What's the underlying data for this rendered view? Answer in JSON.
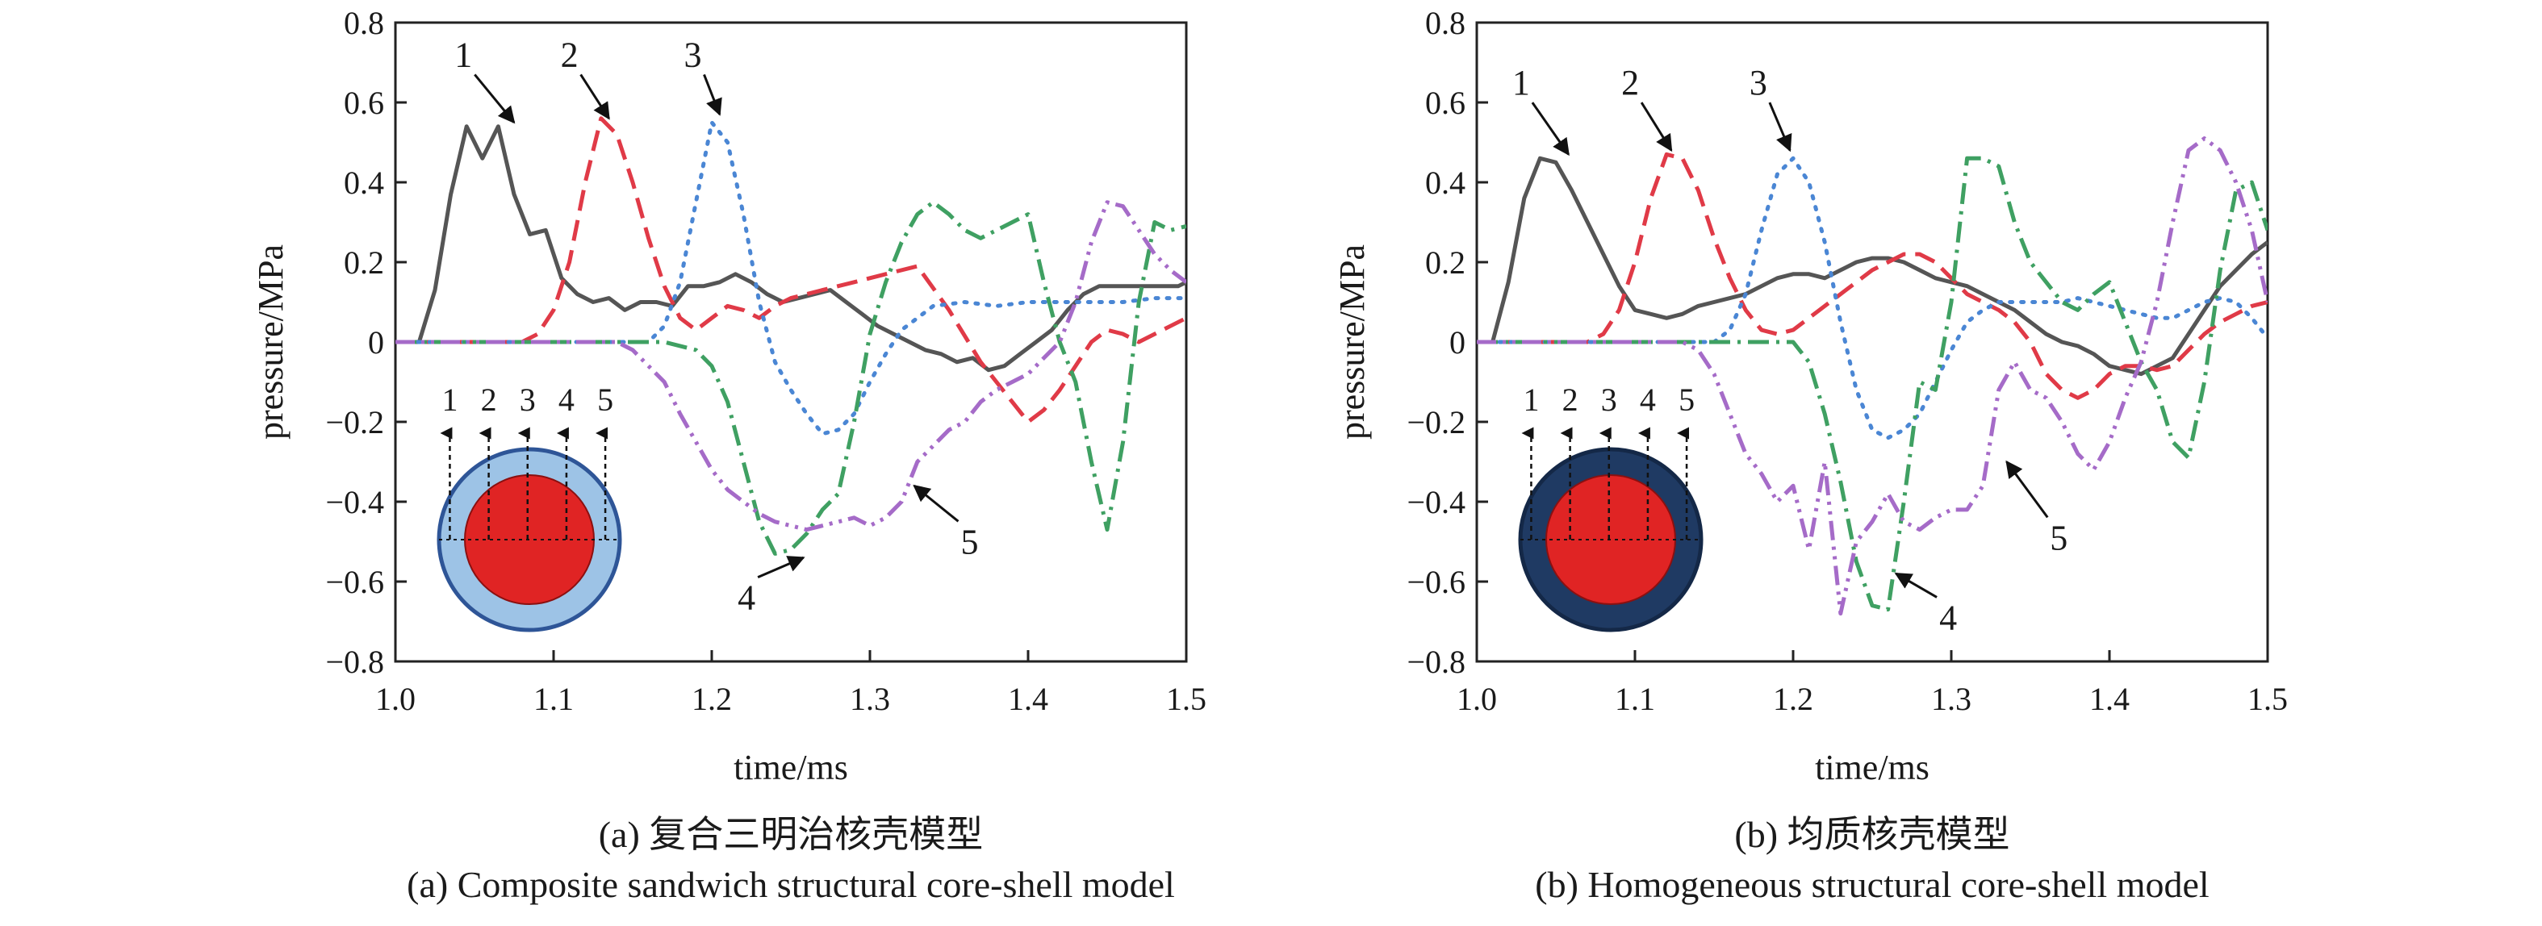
{
  "chart_data": [
    {
      "type": "line",
      "caption_cn": "(a) 复合三明治核壳模型",
      "caption_en": "(a) Composite sandwich structural core-shell model",
      "xlabel": "time/ms",
      "ylabel": "pressure/MPa",
      "xlim": [
        1.0,
        1.5
      ],
      "ylim": [
        -0.8,
        0.8
      ],
      "xticks": [
        "1.0",
        "1.1",
        "1.2",
        "1.3",
        "1.4",
        "1.5"
      ],
      "yticks": [
        "0.8",
        "0.6",
        "0.4",
        "0.2",
        "0",
        "−0.2",
        "−0.4",
        "−0.6",
        "−0.8"
      ],
      "grid": false,
      "inset": {
        "labels": [
          "1",
          "2",
          "3",
          "4",
          "5"
        ],
        "shell_color": "#9dc3e6",
        "core_color": "#e02424",
        "rim_color": "#2e5597"
      },
      "markers": [
        {
          "text": "1",
          "x": 1.043,
          "y": 0.69,
          "arrow_to": [
            1.075,
            0.55
          ]
        },
        {
          "text": "2",
          "x": 1.11,
          "y": 0.69,
          "arrow_to": [
            1.135,
            0.56
          ]
        },
        {
          "text": "3",
          "x": 1.188,
          "y": 0.69,
          "arrow_to": [
            1.205,
            0.57
          ]
        },
        {
          "text": "4",
          "x": 1.222,
          "y": -0.67,
          "arrow_to": [
            1.258,
            -0.54
          ]
        },
        {
          "text": "5",
          "x": 1.363,
          "y": -0.53,
          "arrow_to": [
            1.328,
            -0.36
          ]
        }
      ],
      "series": [
        {
          "name": "1",
          "color": "#555555",
          "dash": "solid",
          "x": [
            1.0,
            1.015,
            1.025,
            1.035,
            1.045,
            1.055,
            1.065,
            1.075,
            1.085,
            1.095,
            1.105,
            1.115,
            1.125,
            1.135,
            1.145,
            1.155,
            1.165,
            1.175,
            1.185,
            1.195,
            1.205,
            1.215,
            1.225,
            1.235,
            1.245,
            1.255,
            1.265,
            1.275,
            1.285,
            1.295,
            1.305,
            1.315,
            1.325,
            1.335,
            1.345,
            1.355,
            1.365,
            1.375,
            1.385,
            1.395,
            1.405,
            1.415,
            1.425,
            1.435,
            1.445,
            1.455,
            1.465,
            1.475,
            1.485,
            1.495,
            1.5
          ],
          "y": [
            0.0,
            0.0,
            0.13,
            0.37,
            0.54,
            0.46,
            0.54,
            0.37,
            0.27,
            0.28,
            0.16,
            0.12,
            0.1,
            0.11,
            0.08,
            0.1,
            0.1,
            0.09,
            0.14,
            0.14,
            0.15,
            0.17,
            0.15,
            0.12,
            0.1,
            0.11,
            0.12,
            0.13,
            0.1,
            0.07,
            0.04,
            0.02,
            0.0,
            -0.02,
            -0.03,
            -0.05,
            -0.04,
            -0.07,
            -0.06,
            -0.03,
            0.0,
            0.03,
            0.08,
            0.12,
            0.14,
            0.14,
            0.14,
            0.14,
            0.14,
            0.14,
            0.15
          ]
        },
        {
          "name": "2",
          "color": "#e03a47",
          "dash": "dashed",
          "x": [
            1.0,
            1.08,
            1.09,
            1.1,
            1.11,
            1.12,
            1.13,
            1.14,
            1.15,
            1.16,
            1.17,
            1.18,
            1.19,
            1.2,
            1.21,
            1.22,
            1.23,
            1.24,
            1.25,
            1.27,
            1.29,
            1.31,
            1.33,
            1.35,
            1.37,
            1.39,
            1.4,
            1.41,
            1.42,
            1.43,
            1.44,
            1.45,
            1.46,
            1.47,
            1.48,
            1.49,
            1.5
          ],
          "y": [
            0.0,
            0.0,
            0.02,
            0.08,
            0.2,
            0.4,
            0.56,
            0.52,
            0.4,
            0.26,
            0.14,
            0.06,
            0.03,
            0.06,
            0.09,
            0.08,
            0.06,
            0.09,
            0.11,
            0.13,
            0.15,
            0.17,
            0.19,
            0.08,
            -0.05,
            -0.15,
            -0.2,
            -0.17,
            -0.12,
            -0.06,
            0.0,
            0.03,
            0.02,
            0.0,
            0.02,
            0.04,
            0.06
          ]
        },
        {
          "name": "3",
          "color": "#4a86d4",
          "dash": "dotted",
          "x": [
            1.0,
            1.16,
            1.17,
            1.18,
            1.19,
            1.2,
            1.21,
            1.22,
            1.23,
            1.24,
            1.25,
            1.26,
            1.27,
            1.28,
            1.29,
            1.3,
            1.31,
            1.32,
            1.33,
            1.34,
            1.36,
            1.38,
            1.4,
            1.42,
            1.44,
            1.46,
            1.48,
            1.5
          ],
          "y": [
            0.0,
            0.0,
            0.04,
            0.15,
            0.35,
            0.55,
            0.5,
            0.32,
            0.1,
            -0.05,
            -0.12,
            -0.18,
            -0.23,
            -0.22,
            -0.18,
            -0.1,
            -0.03,
            0.03,
            0.06,
            0.09,
            0.1,
            0.09,
            0.1,
            0.1,
            0.1,
            0.1,
            0.11,
            0.11
          ]
        },
        {
          "name": "4",
          "color": "#3fa062",
          "dash": "dashdot",
          "x": [
            1.0,
            1.17,
            1.19,
            1.2,
            1.21,
            1.22,
            1.23,
            1.24,
            1.25,
            1.26,
            1.27,
            1.28,
            1.29,
            1.3,
            1.31,
            1.32,
            1.33,
            1.34,
            1.35,
            1.36,
            1.37,
            1.38,
            1.39,
            1.4,
            1.41,
            1.42,
            1.43,
            1.44,
            1.45,
            1.46,
            1.47,
            1.48,
            1.49,
            1.5
          ],
          "y": [
            0.0,
            0.0,
            -0.02,
            -0.06,
            -0.15,
            -0.3,
            -0.45,
            -0.53,
            -0.52,
            -0.48,
            -0.42,
            -0.38,
            -0.2,
            0.02,
            0.15,
            0.25,
            0.32,
            0.35,
            0.32,
            0.28,
            0.26,
            0.28,
            0.3,
            0.32,
            0.15,
            0.0,
            -0.1,
            -0.3,
            -0.47,
            -0.25,
            0.1,
            0.3,
            0.28,
            0.29
          ]
        },
        {
          "name": "5",
          "color": "#a56bc8",
          "dash": "dashdotdot",
          "x": [
            1.0,
            1.14,
            1.15,
            1.16,
            1.17,
            1.18,
            1.19,
            1.2,
            1.21,
            1.22,
            1.23,
            1.24,
            1.25,
            1.26,
            1.27,
            1.28,
            1.29,
            1.3,
            1.31,
            1.32,
            1.33,
            1.34,
            1.35,
            1.36,
            1.37,
            1.38,
            1.39,
            1.4,
            1.41,
            1.42,
            1.43,
            1.44,
            1.45,
            1.46,
            1.47,
            1.48,
            1.49,
            1.5
          ],
          "y": [
            0.0,
            0.0,
            -0.02,
            -0.06,
            -0.1,
            -0.18,
            -0.25,
            -0.32,
            -0.37,
            -0.4,
            -0.43,
            -0.45,
            -0.46,
            -0.47,
            -0.46,
            -0.45,
            -0.44,
            -0.46,
            -0.44,
            -0.4,
            -0.3,
            -0.26,
            -0.22,
            -0.2,
            -0.15,
            -0.12,
            -0.1,
            -0.08,
            -0.04,
            0.0,
            0.1,
            0.25,
            0.35,
            0.34,
            0.28,
            0.22,
            0.18,
            0.15
          ]
        }
      ]
    },
    {
      "type": "line",
      "caption_cn": "(b) 均质核壳模型",
      "caption_en": "(b) Homogeneous structural core-shell model",
      "xlabel": "time/ms",
      "ylabel": "pressure/MPa",
      "xlim": [
        1.0,
        1.5
      ],
      "ylim": [
        -0.8,
        0.8
      ],
      "xticks": [
        "1.0",
        "1.1",
        "1.2",
        "1.3",
        "1.4",
        "1.5"
      ],
      "yticks": [
        "0.8",
        "0.6",
        "0.4",
        "0.2",
        "0",
        "−0.2",
        "−0.4",
        "−0.6",
        "−0.8"
      ],
      "grid": false,
      "inset": {
        "labels": [
          "1",
          "2",
          "3",
          "4",
          "5"
        ],
        "shell_color": "#1f3a63",
        "core_color": "#e02424",
        "rim_color": "#142847"
      },
      "markers": [
        {
          "text": "1",
          "x": 1.028,
          "y": 0.62,
          "arrow_to": [
            1.058,
            0.47
          ]
        },
        {
          "text": "2",
          "x": 1.097,
          "y": 0.62,
          "arrow_to": [
            1.123,
            0.48
          ]
        },
        {
          "text": "3",
          "x": 1.178,
          "y": 0.62,
          "arrow_to": [
            1.198,
            0.48
          ]
        },
        {
          "text": "4",
          "x": 1.298,
          "y": -0.72,
          "arrow_to": [
            1.265,
            -0.58
          ]
        },
        {
          "text": "5",
          "x": 1.368,
          "y": -0.52,
          "arrow_to": [
            1.335,
            -0.3
          ]
        }
      ],
      "series": [
        {
          "name": "1",
          "color": "#555555",
          "dash": "solid",
          "x": [
            1.0,
            1.01,
            1.02,
            1.03,
            1.04,
            1.05,
            1.06,
            1.07,
            1.08,
            1.09,
            1.1,
            1.11,
            1.12,
            1.13,
            1.14,
            1.15,
            1.16,
            1.17,
            1.18,
            1.19,
            1.2,
            1.21,
            1.22,
            1.23,
            1.24,
            1.25,
            1.26,
            1.27,
            1.28,
            1.29,
            1.3,
            1.31,
            1.32,
            1.33,
            1.34,
            1.35,
            1.36,
            1.37,
            1.38,
            1.39,
            1.4,
            1.41,
            1.42,
            1.43,
            1.44,
            1.45,
            1.46,
            1.47,
            1.48,
            1.49,
            1.5
          ],
          "y": [
            0.0,
            0.0,
            0.15,
            0.36,
            0.46,
            0.45,
            0.38,
            0.3,
            0.22,
            0.14,
            0.08,
            0.07,
            0.06,
            0.07,
            0.09,
            0.1,
            0.11,
            0.12,
            0.14,
            0.16,
            0.17,
            0.17,
            0.16,
            0.18,
            0.2,
            0.21,
            0.21,
            0.2,
            0.18,
            0.16,
            0.15,
            0.14,
            0.12,
            0.1,
            0.08,
            0.05,
            0.02,
            0.0,
            -0.01,
            -0.03,
            -0.06,
            -0.07,
            -0.08,
            -0.06,
            -0.04,
            0.02,
            0.08,
            0.14,
            0.18,
            0.22,
            0.25
          ]
        },
        {
          "name": "2",
          "color": "#e03a47",
          "dash": "dashed",
          "x": [
            1.0,
            1.07,
            1.08,
            1.09,
            1.1,
            1.11,
            1.12,
            1.13,
            1.14,
            1.15,
            1.16,
            1.17,
            1.18,
            1.19,
            1.2,
            1.21,
            1.22,
            1.23,
            1.24,
            1.25,
            1.26,
            1.27,
            1.28,
            1.29,
            1.3,
            1.31,
            1.32,
            1.33,
            1.34,
            1.35,
            1.36,
            1.37,
            1.38,
            1.39,
            1.4,
            1.41,
            1.42,
            1.43,
            1.44,
            1.45,
            1.46,
            1.47,
            1.48,
            1.49,
            1.5
          ],
          "y": [
            0.0,
            0.0,
            0.02,
            0.08,
            0.2,
            0.36,
            0.47,
            0.46,
            0.38,
            0.26,
            0.16,
            0.08,
            0.03,
            0.02,
            0.03,
            0.06,
            0.09,
            0.12,
            0.15,
            0.18,
            0.2,
            0.22,
            0.22,
            0.2,
            0.16,
            0.12,
            0.1,
            0.08,
            0.05,
            0.0,
            -0.08,
            -0.12,
            -0.14,
            -0.12,
            -0.08,
            -0.06,
            -0.06,
            -0.07,
            -0.06,
            -0.02,
            0.02,
            0.05,
            0.07,
            0.09,
            0.1
          ]
        },
        {
          "name": "3",
          "color": "#4a86d4",
          "dash": "dotted",
          "x": [
            1.0,
            1.15,
            1.16,
            1.17,
            1.18,
            1.19,
            1.2,
            1.21,
            1.22,
            1.23,
            1.24,
            1.25,
            1.26,
            1.27,
            1.28,
            1.29,
            1.3,
            1.31,
            1.32,
            1.33,
            1.34,
            1.35,
            1.36,
            1.37,
            1.38,
            1.39,
            1.4,
            1.41,
            1.42,
            1.43,
            1.44,
            1.45,
            1.46,
            1.47,
            1.48,
            1.49,
            1.5
          ],
          "y": [
            0.0,
            0.0,
            0.03,
            0.12,
            0.28,
            0.42,
            0.46,
            0.4,
            0.25,
            0.05,
            -0.12,
            -0.22,
            -0.24,
            -0.22,
            -0.18,
            -0.1,
            -0.02,
            0.05,
            0.08,
            0.1,
            0.1,
            0.1,
            0.1,
            0.1,
            0.11,
            0.1,
            0.09,
            0.08,
            0.07,
            0.06,
            0.06,
            0.08,
            0.1,
            0.11,
            0.1,
            0.06,
            0.01
          ]
        },
        {
          "name": "4",
          "color": "#3fa062",
          "dash": "dashdot",
          "x": [
            1.0,
            1.2,
            1.21,
            1.22,
            1.23,
            1.24,
            1.25,
            1.26,
            1.27,
            1.28,
            1.29,
            1.3,
            1.31,
            1.32,
            1.33,
            1.34,
            1.35,
            1.36,
            1.37,
            1.38,
            1.39,
            1.4,
            1.41,
            1.42,
            1.43,
            1.44,
            1.45,
            1.46,
            1.47,
            1.48,
            1.49,
            1.5
          ],
          "y": [
            0.0,
            0.0,
            -0.05,
            -0.18,
            -0.35,
            -0.55,
            -0.66,
            -0.67,
            -0.4,
            -0.1,
            -0.12,
            0.1,
            0.46,
            0.46,
            0.44,
            0.3,
            0.2,
            0.15,
            0.1,
            0.08,
            0.12,
            0.15,
            0.05,
            -0.05,
            -0.12,
            -0.25,
            -0.29,
            -0.1,
            0.18,
            0.38,
            0.4,
            0.28
          ]
        },
        {
          "name": "5",
          "color": "#a56bc8",
          "dash": "dashdotdot",
          "x": [
            1.0,
            1.13,
            1.14,
            1.15,
            1.16,
            1.17,
            1.18,
            1.19,
            1.2,
            1.21,
            1.22,
            1.23,
            1.24,
            1.25,
            1.26,
            1.27,
            1.28,
            1.29,
            1.3,
            1.31,
            1.32,
            1.33,
            1.34,
            1.35,
            1.36,
            1.37,
            1.38,
            1.39,
            1.4,
            1.41,
            1.42,
            1.43,
            1.44,
            1.45,
            1.46,
            1.47,
            1.48,
            1.49,
            1.5
          ],
          "y": [
            0.0,
            0.0,
            -0.02,
            -0.08,
            -0.18,
            -0.28,
            -0.33,
            -0.4,
            -0.36,
            -0.52,
            -0.3,
            -0.68,
            -0.5,
            -0.45,
            -0.38,
            -0.45,
            -0.47,
            -0.44,
            -0.42,
            -0.42,
            -0.36,
            -0.12,
            -0.05,
            -0.12,
            -0.14,
            -0.2,
            -0.28,
            -0.32,
            -0.25,
            -0.14,
            -0.05,
            0.1,
            0.3,
            0.48,
            0.51,
            0.48,
            0.4,
            0.28,
            0.1
          ]
        }
      ]
    }
  ]
}
